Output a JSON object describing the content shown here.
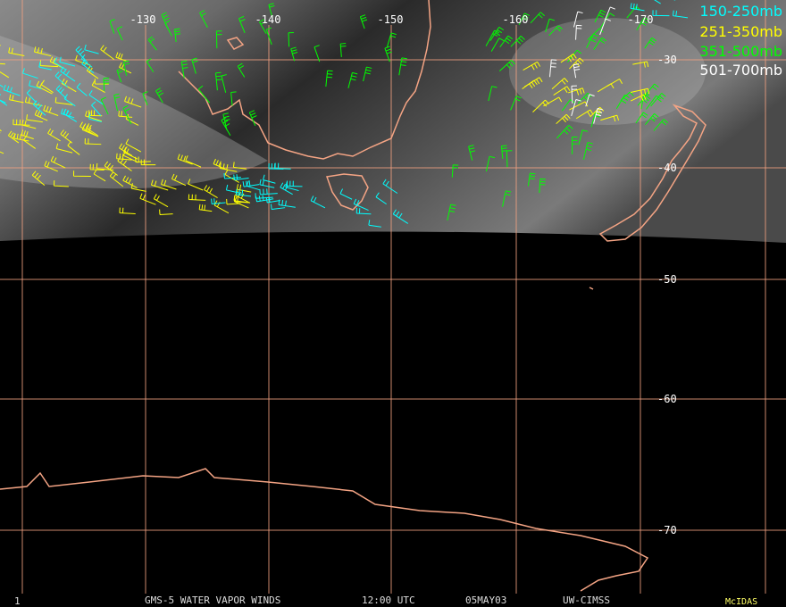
{
  "longitude_labels": [
    "-130",
    "-140",
    "-150",
    "-160",
    "-170"
  ],
  "latitude_labels": [
    "-30",
    "-40",
    "-50",
    "-60",
    "-70"
  ],
  "legend": [
    "150-250mb",
    "251-350mb",
    "351-500mb",
    "501-700mb"
  ],
  "footer": {
    "frame": "1",
    "title": "GMS-5 WATER VAPOR WINDS",
    "time": "12:00 UTC",
    "date": "05MAY03",
    "source": "UW-CIMSS",
    "system": "McIDAS"
  }
}
